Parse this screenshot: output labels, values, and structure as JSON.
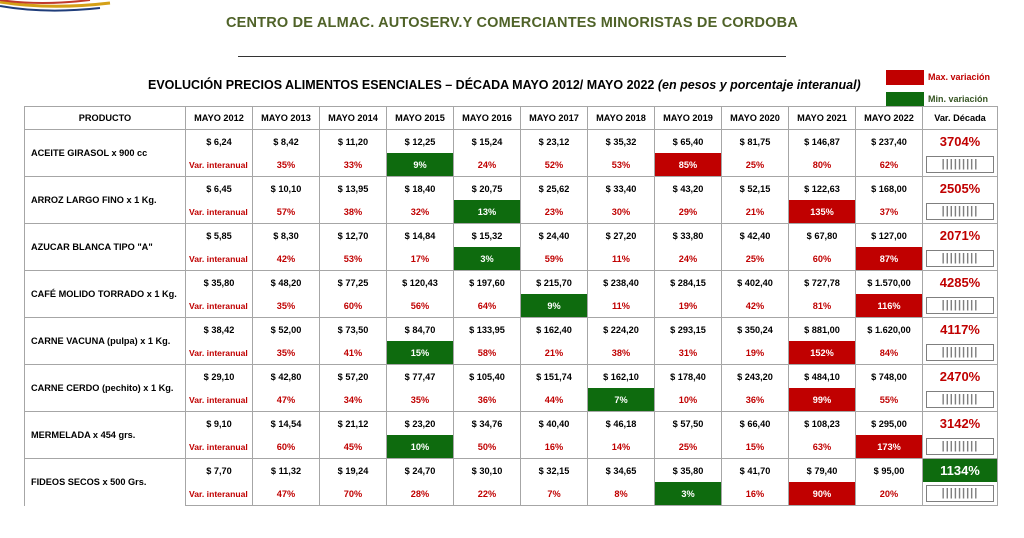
{
  "org_title": "CENTRO DE ALMAC. AUTOSERV.Y COMERCIANTES MINORISTAS DE CORDOBA",
  "report_title": "EVOLUCIÓN PRECIOS ALIMENTOS ESENCIALES  – DÉCADA MAYO 2012/ MAYO 2022",
  "report_subtitle": "(en pesos y porcentaje interanual)",
  "legend": {
    "max_label": "Max. variación",
    "min_label": "Min. variación",
    "max_color": "#c00000",
    "min_color": "#0e6b0e"
  },
  "headers": [
    "PRODUCTO",
    "MAYO  2012",
    "MAYO  2013",
    "MAYO  2014",
    "MAYO  2015",
    "MAYO  2016",
    "MAYO  2017",
    "MAYO  2018",
    "MAYO  2019",
    "MAYO  2020",
    "MAYO  2021",
    "MAYO  2022",
    "Var. Década"
  ],
  "var_label": "Var. interanual",
  "bars_glyph": "|||||||||",
  "products": [
    {
      "name": "ACEITE GIRASOL x 900 cc",
      "prices": [
        "$ 6,24",
        "$ 8,42",
        "$ 11,20",
        "$ 12,25",
        "$ 15,24",
        "$ 23,12",
        "$ 35,32",
        "$ 65,40",
        "$ 81,75",
        "$ 146,87",
        "$ 237,40"
      ],
      "variations": [
        "35%",
        "33%",
        "9%",
        "24%",
        "52%",
        "53%",
        "85%",
        "25%",
        "80%",
        "62%"
      ],
      "max_index": 6,
      "min_index": 2,
      "decade": "3704%",
      "decade_best": false
    },
    {
      "name": "ARROZ LARGO FINO x 1 Kg.",
      "prices": [
        "$ 6,45",
        "$ 10,10",
        "$ 13,95",
        "$ 18,40",
        "$ 20,75",
        "$ 25,62",
        "$ 33,40",
        "$ 43,20",
        "$ 52,15",
        "$ 122,63",
        "$ 168,00"
      ],
      "variations": [
        "57%",
        "38%",
        "32%",
        "13%",
        "23%",
        "30%",
        "29%",
        "21%",
        "135%",
        "37%"
      ],
      "max_index": 8,
      "min_index": 3,
      "decade": "2505%",
      "decade_best": false
    },
    {
      "name": "AZUCAR BLANCA TIPO \"A\"",
      "prices": [
        "$ 5,85",
        "$ 8,30",
        "$ 12,70",
        "$ 14,84",
        "$ 15,32",
        "$ 24,40",
        "$ 27,20",
        "$ 33,80",
        "$ 42,40",
        "$ 67,80",
        "$ 127,00"
      ],
      "variations": [
        "42%",
        "53%",
        "17%",
        "3%",
        "59%",
        "11%",
        "24%",
        "25%",
        "60%",
        "87%"
      ],
      "max_index": 9,
      "min_index": 3,
      "decade": "2071%",
      "decade_best": false
    },
    {
      "name": "CAFÉ MOLIDO TORRADO x 1 Kg.",
      "prices": [
        "$ 35,80",
        "$ 48,20",
        "$ 77,25",
        "$ 120,43",
        "$ 197,60",
        "$ 215,70",
        "$ 238,40",
        "$ 284,15",
        "$ 402,40",
        "$ 727,78",
        "$ 1.570,00"
      ],
      "variations": [
        "35%",
        "60%",
        "56%",
        "64%",
        "9%",
        "11%",
        "19%",
        "42%",
        "81%",
        "116%"
      ],
      "max_index": 9,
      "min_index": 4,
      "decade": "4285%",
      "decade_best": false
    },
    {
      "name": "CARNE VACUNA (pulpa) x 1 Kg.",
      "prices": [
        "$ 38,42",
        "$ 52,00",
        "$ 73,50",
        "$ 84,70",
        "$ 133,95",
        "$ 162,40",
        "$ 224,20",
        "$ 293,15",
        "$ 350,24",
        "$ 881,00",
        "$ 1.620,00"
      ],
      "variations": [
        "35%",
        "41%",
        "15%",
        "58%",
        "21%",
        "38%",
        "31%",
        "19%",
        "152%",
        "84%"
      ],
      "max_index": 8,
      "min_index": 2,
      "decade": "4117%",
      "decade_best": false
    },
    {
      "name": "CARNE CERDO (pechito) x 1 Kg.",
      "prices": [
        "$ 29,10",
        "$ 42,80",
        "$ 57,20",
        "$ 77,47",
        "$ 105,40",
        "$ 151,74",
        "$ 162,10",
        "$ 178,40",
        "$ 243,20",
        "$ 484,10",
        "$ 748,00"
      ],
      "variations": [
        "47%",
        "34%",
        "35%",
        "36%",
        "44%",
        "7%",
        "10%",
        "36%",
        "99%",
        "55%"
      ],
      "max_index": 8,
      "min_index": 5,
      "decade": "2470%",
      "decade_best": false
    },
    {
      "name": "MERMELADA x 454 grs.",
      "prices": [
        "$ 9,10",
        "$ 14,54",
        "$ 21,12",
        "$ 23,20",
        "$ 34,76",
        "$ 40,40",
        "$ 46,18",
        "$ 57,50",
        "$ 66,40",
        "$ 108,23",
        "$ 295,00"
      ],
      "variations": [
        "60%",
        "45%",
        "10%",
        "50%",
        "16%",
        "14%",
        "25%",
        "15%",
        "63%",
        "173%"
      ],
      "max_index": 9,
      "min_index": 2,
      "decade": "3142%",
      "decade_best": false
    },
    {
      "name": "FIDEOS SECOS x 500 Grs.",
      "prices": [
        "$ 7,70",
        "$ 11,32",
        "$ 19,24",
        "$ 24,70",
        "$ 30,10",
        "$ 32,15",
        "$ 34,65",
        "$ 35,80",
        "$ 41,70",
        "$ 79,40",
        "$ 95,00"
      ],
      "variations": [
        "47%",
        "70%",
        "28%",
        "22%",
        "7%",
        "8%",
        "3%",
        "16%",
        "90%",
        "20%"
      ],
      "max_index": 8,
      "min_index": 6,
      "decade": "1134%",
      "decade_best": true
    }
  ]
}
